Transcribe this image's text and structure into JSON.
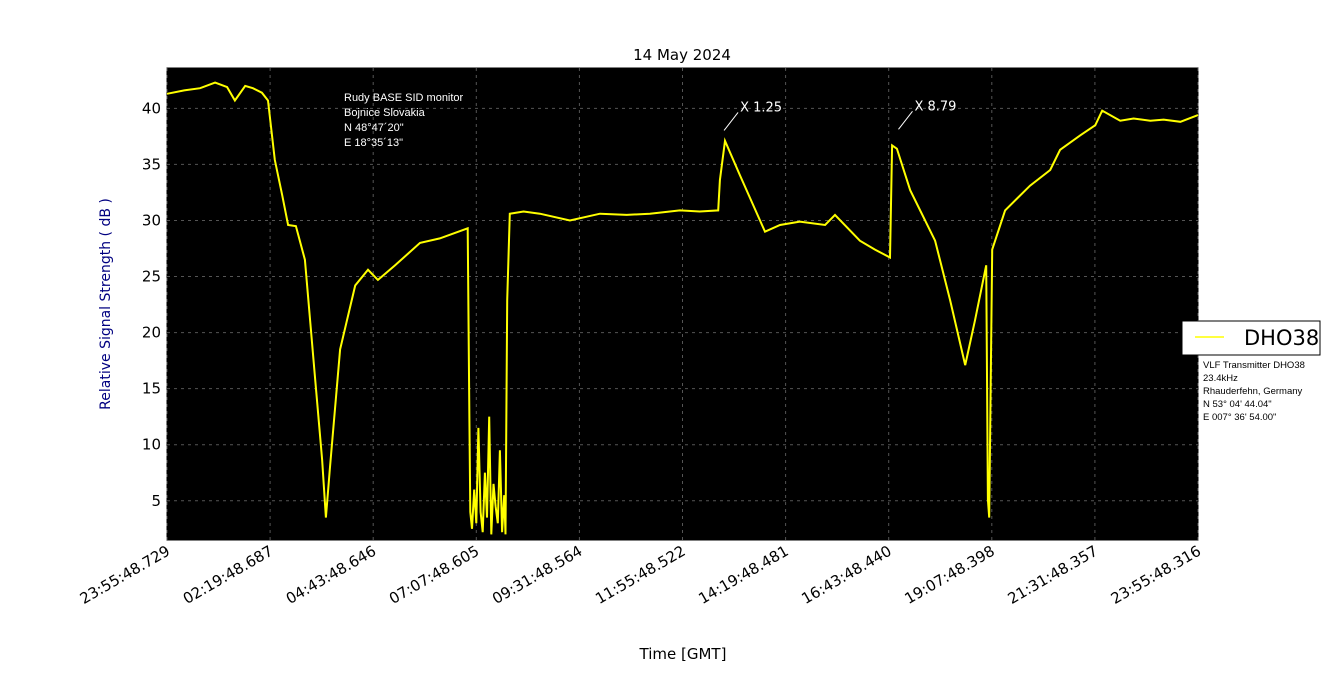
{
  "chart_data": {
    "type": "line",
    "title": "14 May 2024",
    "xlabel": "Time [GMT]",
    "ylabel": "Relative Signal Strength ( dB )",
    "xlim_hours": [
      0,
      24
    ],
    "ylim": [
      1.5,
      43.6
    ],
    "grid": true,
    "x_tick_labels": [
      "23:55:48.729",
      "02:19:48.687",
      "04:43:48.646",
      "07:07:48.605",
      "09:31:48.564",
      "11:55:48.522",
      "14:19:48.481",
      "16:43:48.440",
      "19:07:48.398",
      "21:31:48.357",
      "23:55:48.316"
    ],
    "y_ticks": [
      5,
      10,
      15,
      20,
      25,
      30,
      35,
      40
    ],
    "legend": {
      "placement": "right",
      "label": "DHO38"
    },
    "series": [
      {
        "name": "DHO38",
        "color": "#ffff00",
        "x_hours": [
          0,
          0.4,
          0.77,
          1.12,
          1.4,
          1.58,
          1.82,
          2.0,
          2.21,
          2.35,
          2.51,
          2.68,
          2.82,
          3.0,
          3.21,
          3.45,
          3.61,
          3.7,
          3.79,
          4.03,
          4.38,
          4.68,
          4.91,
          5.31,
          5.89,
          6.35,
          7.0,
          7.04,
          7.06,
          7.1,
          7.15,
          7.2,
          7.25,
          7.3,
          7.35,
          7.4,
          7.45,
          7.5,
          7.55,
          7.6,
          7.65,
          7.7,
          7.75,
          7.8,
          7.85,
          7.88,
          7.92,
          7.98,
          8.3,
          8.68,
          9.38,
          10.08,
          10.7,
          11.24,
          11.94,
          12.4,
          12.83,
          12.87,
          12.99,
          13.34,
          13.92,
          14.27,
          14.73,
          15.32,
          15.55,
          16.13,
          16.48,
          16.83,
          16.88,
          16.99,
          17.3,
          17.88,
          18.23,
          18.58,
          18.81,
          19.07,
          19.11,
          19.14,
          19.21,
          19.51,
          20.09,
          20.56,
          20.79,
          21.26,
          21.61,
          21.77,
          22.19,
          22.5,
          22.89,
          23.2,
          23.59,
          24.0
        ],
        "y_db": [
          41.3,
          41.6,
          41.8,
          42.3,
          41.9,
          40.7,
          42.0,
          41.8,
          41.4,
          40.7,
          35.4,
          32.3,
          29.6,
          29.5,
          26.5,
          15.8,
          8.7,
          3.5,
          7.8,
          18.5,
          24.2,
          25.6,
          24.7,
          26.0,
          28.0,
          28.4,
          29.3,
          12.2,
          4.0,
          2.5,
          6.0,
          3.0,
          11.5,
          4.0,
          2.2,
          7.5,
          3.5,
          12.5,
          2.0,
          6.5,
          4.5,
          3.0,
          9.5,
          2.2,
          5.5,
          2.0,
          22.9,
          30.6,
          30.8,
          30.6,
          30.0,
          30.6,
          30.5,
          30.6,
          30.9,
          30.8,
          30.9,
          33.6,
          37.1,
          34.0,
          29.0,
          29.6,
          29.9,
          29.6,
          30.5,
          28.2,
          27.4,
          26.7,
          36.7,
          36.4,
          32.7,
          28.2,
          22.9,
          17.1,
          21.1,
          26.0,
          5.1,
          3.5,
          27.4,
          30.9,
          33.1,
          34.5,
          36.3,
          37.6,
          38.5,
          39.8,
          38.9,
          39.1,
          38.9,
          39.0,
          38.8,
          39.4
        ]
      }
    ],
    "annotations": [
      {
        "text": "X 1.25",
        "x_hours": 13.34,
        "y_db": 39.9
      },
      {
        "text": "X 8.79",
        "x_hours": 17.4,
        "y_db": 40.0
      }
    ],
    "station_info": [
      "Rudy BASE SID monitor",
      "Bojnice Slovakia",
      "N 48°47´20\"",
      "E 18°35´13\""
    ],
    "transmitter_info": [
      "VLF Transmitter DHO38",
      "23.4kHz",
      "Rhauderfehn, Germany",
      "N 53° 04' 44.04\"",
      "E 007° 36' 54.00\""
    ]
  }
}
